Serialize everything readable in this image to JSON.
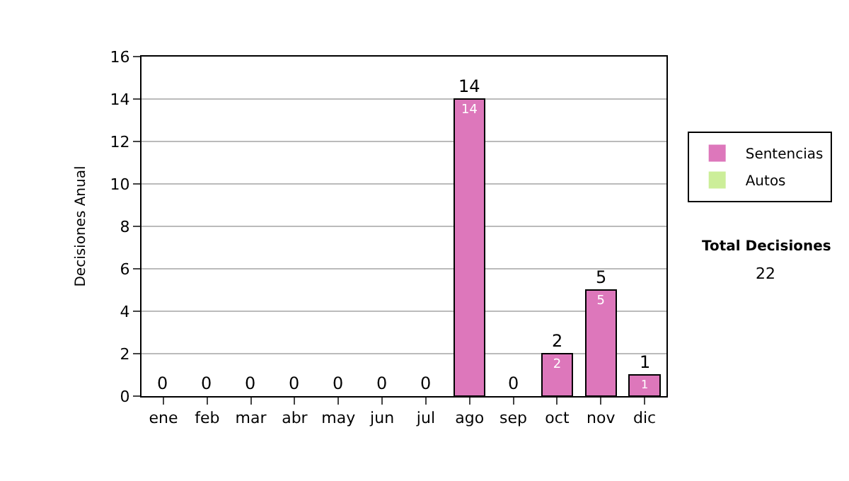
{
  "chart_data": {
    "type": "bar",
    "stacked": true,
    "ylabel": "Decisiones Anual",
    "categories": [
      "ene",
      "feb",
      "mar",
      "abr",
      "may",
      "jun",
      "jul",
      "ago",
      "sep",
      "oct",
      "nov",
      "dic"
    ],
    "series": [
      {
        "name": "Sentencias",
        "color": "#dd77bb",
        "values": [
          0,
          0,
          0,
          0,
          0,
          0,
          0,
          14,
          0,
          2,
          5,
          1
        ],
        "value_labels": [
          null,
          null,
          null,
          null,
          null,
          null,
          null,
          "14",
          null,
          "2",
          "5",
          "1"
        ]
      },
      {
        "name": "Autos",
        "color": "#ccee99",
        "values": [
          0,
          0,
          0,
          0,
          0,
          0,
          0,
          0,
          0,
          0,
          0,
          0
        ]
      }
    ],
    "totals": [
      "0",
      "0",
      "0",
      "0",
      "0",
      "0",
      "0",
      "14",
      "0",
      "2",
      "5",
      "1"
    ],
    "ylim": [
      0,
      16
    ],
    "yticks": [
      0,
      2,
      4,
      6,
      8,
      10,
      12,
      14,
      16
    ],
    "grid": "y",
    "legend": "right",
    "annotations": [
      "Total Decisiones",
      "22"
    ]
  }
}
